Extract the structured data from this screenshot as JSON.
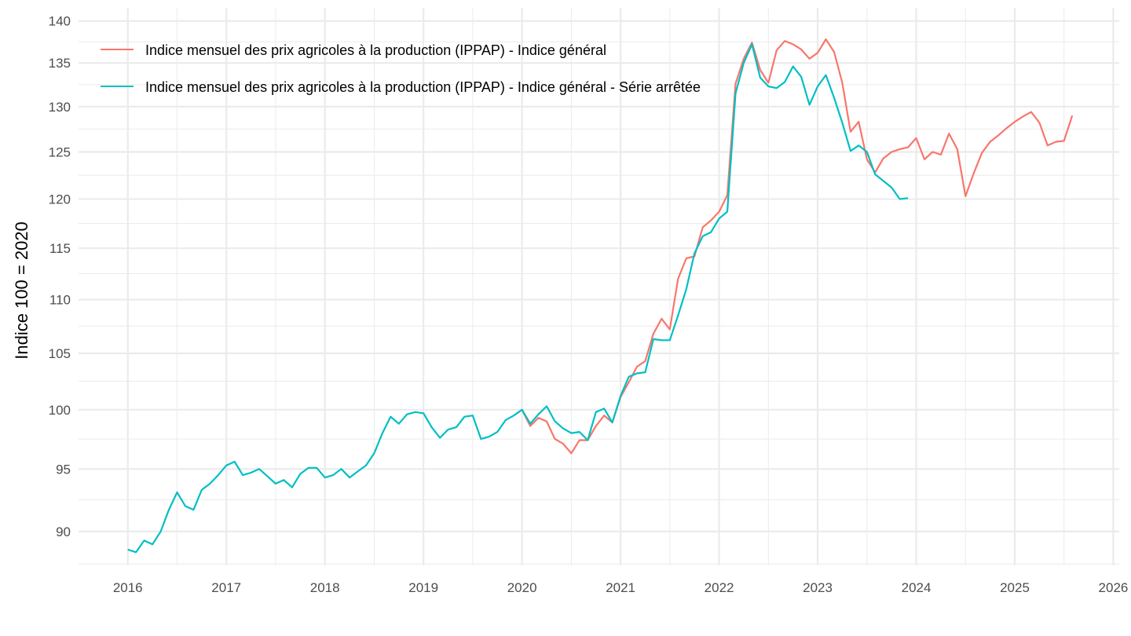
{
  "chart_data": {
    "type": "line",
    "title": "",
    "xlabel": "",
    "ylabel": "Indice 100 = 2020",
    "y_scale": "log",
    "ylim": [
      87.4,
      141.6
    ],
    "xlim": [
      2015.5,
      2026.06
    ],
    "grid": true,
    "legend_position": "top-left",
    "x_ticks": [
      "2016",
      "2017",
      "2018",
      "2019",
      "2020",
      "2021",
      "2022",
      "2023",
      "2024",
      "2025",
      "2026"
    ],
    "y_ticks": [
      "90",
      "95",
      "100",
      "105",
      "110",
      "115",
      "120",
      "125",
      "130",
      "135",
      "140"
    ],
    "series": [
      {
        "name": "Indice mensuel des prix agricoles à la production (IPPAP) - Indice général",
        "color": "#F8766D",
        "start": "2020-01",
        "frequency": "monthly",
        "values": [
          100.0,
          98.6,
          99.3,
          99.0,
          97.5,
          97.1,
          96.3,
          97.4,
          97.4,
          98.6,
          99.5,
          98.9,
          101.1,
          102.4,
          103.8,
          104.3,
          106.8,
          108.2,
          107.2,
          112.0,
          114.0,
          114.2,
          117.1,
          117.8,
          118.7,
          120.4,
          132.6,
          135.5,
          137.4,
          134.2,
          132.7,
          136.5,
          137.6,
          137.2,
          136.6,
          135.5,
          136.2,
          137.8,
          136.3,
          132.7,
          127.2,
          128.3,
          124.2,
          122.8,
          124.3,
          125.0,
          125.3,
          125.5,
          126.5,
          124.2,
          125.0,
          124.7,
          127.0,
          125.3,
          120.3,
          122.7,
          124.9,
          126.1,
          126.8,
          127.6,
          128.3,
          128.9,
          129.4,
          128.2,
          125.7,
          126.1,
          126.2,
          129.0
        ]
      },
      {
        "name": "Indice mensuel des prix agricoles à la production (IPPAP) - Indice général - Série arrêtée",
        "color": "#00BFC4",
        "start": "2016-01",
        "frequency": "monthly",
        "values": [
          88.6,
          88.4,
          89.3,
          89.0,
          90.0,
          91.7,
          93.1,
          92.0,
          91.7,
          93.3,
          93.8,
          94.5,
          95.3,
          95.6,
          94.5,
          94.7,
          95.0,
          94.4,
          93.8,
          94.1,
          93.5,
          94.6,
          95.1,
          95.1,
          94.3,
          94.5,
          95.0,
          94.3,
          94.8,
          95.3,
          96.3,
          98.0,
          99.4,
          98.8,
          99.6,
          99.8,
          99.7,
          98.5,
          97.6,
          98.3,
          98.5,
          99.4,
          99.5,
          97.5,
          97.7,
          98.1,
          99.1,
          99.5,
          100.0,
          98.8,
          99.6,
          100.3,
          99.0,
          98.4,
          98.0,
          98.1,
          97.4,
          99.8,
          100.1,
          98.9,
          101.2,
          102.9,
          103.2,
          103.3,
          106.3,
          106.2,
          106.2,
          108.5,
          111.0,
          114.5,
          116.2,
          116.6,
          118.0,
          118.7,
          131.5,
          135.0,
          137.2,
          133.3,
          132.3,
          132.1,
          132.8,
          134.6,
          133.4,
          130.2,
          132.3,
          133.6,
          131.0,
          128.2,
          125.1,
          125.7,
          125.0,
          122.6,
          121.9,
          121.2,
          120.0,
          120.1
        ]
      }
    ]
  }
}
